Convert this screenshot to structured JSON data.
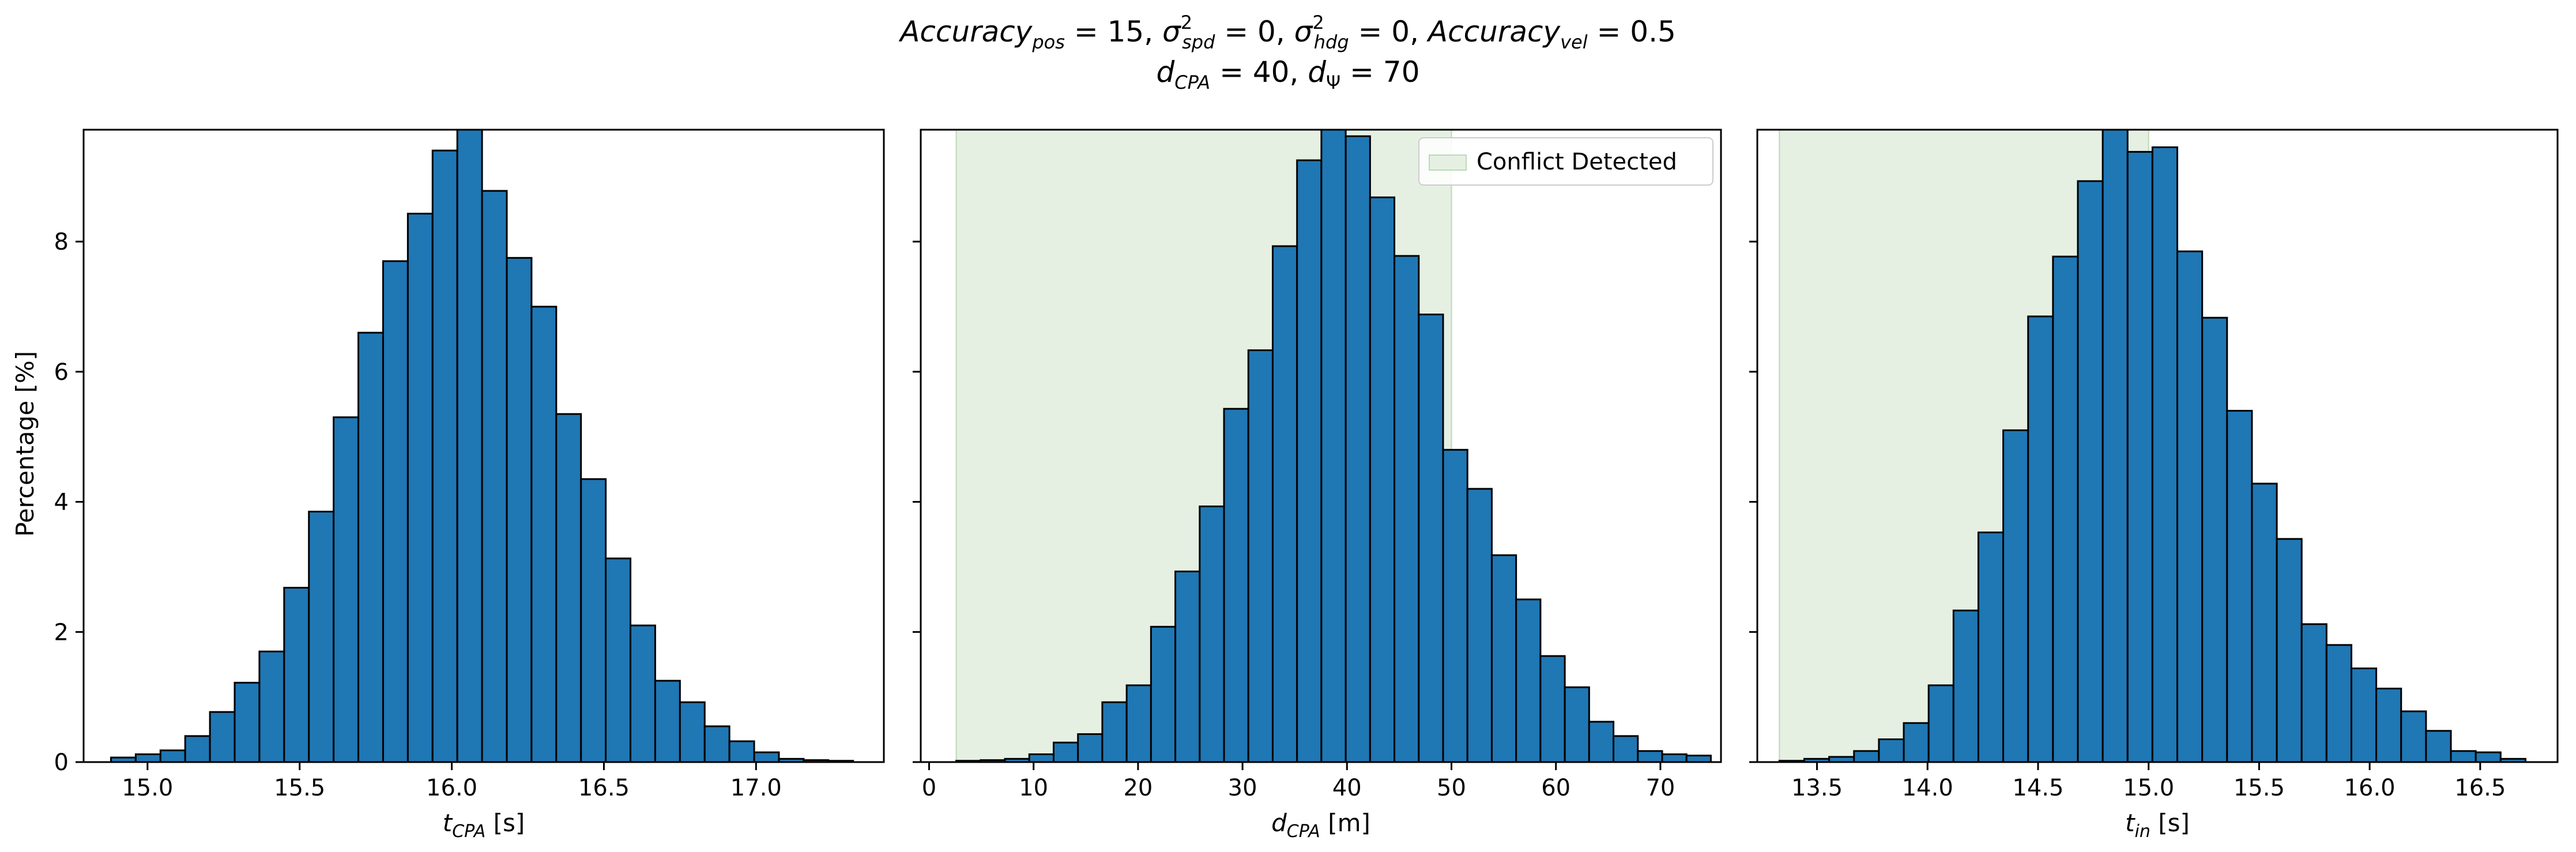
{
  "figure": {
    "title_line1": "Accuracy_pos = 15, σ²_spd = 0, σ²_hdg = 0, Accuracy_vel = 0.5",
    "title_line2": "d_CPA = 40, d_Ψ = 70"
  },
  "colors": {
    "bar": "#1f77b4",
    "edge": "#000000",
    "shade": "#e5f0e3",
    "shade_edge": "#bcd9b7"
  },
  "legend": {
    "label": "Conflict Detected",
    "location": "top-right",
    "panel": 2
  },
  "chart_data": [
    {
      "type": "bar",
      "histogram": true,
      "xlabel": "t_CPA [s]",
      "ylabel": "Percentage [%]",
      "xlim": [
        14.79,
        17.42
      ],
      "ylim": [
        0,
        9.72
      ],
      "xticks": [
        "15.0",
        "15.5",
        "16.0",
        "16.5",
        "17.0"
      ],
      "yticks": [
        "0",
        "2",
        "4",
        "6",
        "8"
      ],
      "bin_start": 14.88,
      "bin_width": 0.0813,
      "values": [
        0.07,
        0.12,
        0.18,
        0.4,
        0.77,
        1.22,
        1.7,
        2.68,
        3.85,
        5.3,
        6.6,
        7.7,
        8.43,
        9.4,
        9.72,
        8.78,
        7.75,
        7.0,
        5.35,
        4.35,
        3.13,
        2.1,
        1.25,
        0.92,
        0.55,
        0.32,
        0.15,
        0.05,
        0.03,
        0.02
      ],
      "shaded_region": null
    },
    {
      "type": "bar",
      "histogram": true,
      "xlabel": "d_CPA [m]",
      "ylabel": "",
      "xlim": [
        -0.8,
        75.8
      ],
      "ylim": [
        0,
        9.72
      ],
      "xticks": [
        "0",
        "10",
        "20",
        "30",
        "40",
        "50",
        "60",
        "70"
      ],
      "yticks": [
        "0",
        "2",
        "4",
        "6",
        "8"
      ],
      "bin_start": 2.6,
      "bin_width": 2.33,
      "values": [
        0.02,
        0.03,
        0.05,
        0.12,
        0.3,
        0.43,
        0.92,
        1.18,
        2.08,
        2.93,
        3.93,
        5.43,
        6.33,
        7.93,
        9.25,
        9.72,
        9.62,
        8.68,
        7.78,
        6.88,
        4.8,
        4.2,
        3.18,
        2.5,
        1.63,
        1.15,
        0.62,
        0.4,
        0.17,
        0.12,
        0.1
      ],
      "shaded_region": [
        2.6,
        50.0
      ]
    },
    {
      "type": "bar",
      "histogram": true,
      "xlabel": "t_in [s]",
      "ylabel": "",
      "xlim": [
        13.23,
        16.85
      ],
      "ylim": [
        0,
        9.72
      ],
      "xticks": [
        "13.5",
        "14.0",
        "14.5",
        "15.0",
        "15.5",
        "16.0",
        "16.5"
      ],
      "yticks": [
        "0",
        "2",
        "4",
        "6",
        "8"
      ],
      "bin_start": 13.33,
      "bin_width": 0.1125,
      "values": [
        0.02,
        0.05,
        0.08,
        0.17,
        0.35,
        0.6,
        1.18,
        2.33,
        3.53,
        5.1,
        6.85,
        7.77,
        8.93,
        9.72,
        9.38,
        9.45,
        7.85,
        6.83,
        5.4,
        4.28,
        3.43,
        2.12,
        1.8,
        1.44,
        1.13,
        0.78,
        0.48,
        0.17,
        0.15,
        0.05
      ],
      "shaded_region": [
        13.33,
        15.0
      ]
    }
  ]
}
